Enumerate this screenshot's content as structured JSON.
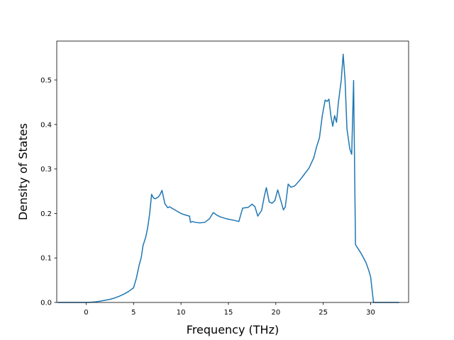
{
  "chart_data": {
    "type": "line",
    "xlabel": "Frequency (THz)",
    "ylabel": "Density of States",
    "xlim": [
      -3.1,
      34.0
    ],
    "ylim": [
      0.0,
      0.5875
    ],
    "xticks": [
      0,
      5,
      10,
      15,
      20,
      25,
      30
    ],
    "yticks": [
      0.0,
      0.1,
      0.2,
      0.3,
      0.4,
      0.5
    ],
    "grid": false,
    "colors": {
      "series": "#1f77b4",
      "axes": "#000000",
      "background": "#ffffff"
    },
    "series": [
      {
        "x": [
          -3.0,
          -2.0,
          -1.0,
          0.0,
          0.5,
          1.0,
          1.5,
          2.0,
          2.5,
          3.0,
          3.5,
          4.0,
          4.5,
          5.0,
          5.3,
          5.6,
          5.8,
          6.0,
          6.3,
          6.5,
          6.7,
          6.9,
          7.1,
          7.3,
          7.6,
          7.8,
          8.0,
          8.3,
          8.6,
          8.8,
          9.2,
          9.6,
          10.0,
          10.4,
          10.9,
          11.0,
          11.2,
          11.5,
          12.0,
          12.5,
          13.0,
          13.2,
          13.4,
          13.8,
          14.2,
          14.8,
          15.5,
          16.1,
          16.5,
          16.8,
          17.1,
          17.5,
          17.8,
          18.1,
          18.5,
          18.8,
          19.0,
          19.3,
          19.6,
          19.9,
          20.2,
          20.5,
          20.8,
          21.0,
          21.3,
          21.6,
          22.0,
          22.5,
          23.0,
          23.5,
          24.0,
          24.3,
          24.6,
          24.9,
          25.2,
          25.4,
          25.6,
          25.8,
          26.0,
          26.2,
          26.4,
          26.6,
          26.9,
          27.1,
          27.3,
          27.5,
          27.8,
          28.0,
          28.2,
          28.4,
          29.0,
          29.5,
          29.8,
          30.0,
          30.3,
          31.0,
          32.0,
          33.0
        ],
        "y": [
          0.0,
          0.0,
          0.0,
          0.0,
          0.0005,
          0.0015,
          0.003,
          0.005,
          0.007,
          0.01,
          0.014,
          0.019,
          0.025,
          0.033,
          0.055,
          0.085,
          0.1,
          0.128,
          0.148,
          0.17,
          0.2,
          0.243,
          0.235,
          0.233,
          0.237,
          0.243,
          0.252,
          0.222,
          0.213,
          0.215,
          0.21,
          0.205,
          0.2,
          0.197,
          0.194,
          0.18,
          0.182,
          0.18,
          0.179,
          0.18,
          0.188,
          0.195,
          0.202,
          0.196,
          0.192,
          0.188,
          0.185,
          0.182,
          0.212,
          0.213,
          0.214,
          0.221,
          0.215,
          0.194,
          0.207,
          0.24,
          0.258,
          0.226,
          0.223,
          0.229,
          0.253,
          0.231,
          0.208,
          0.215,
          0.266,
          0.259,
          0.262,
          0.274,
          0.288,
          0.302,
          0.325,
          0.35,
          0.37,
          0.42,
          0.455,
          0.452,
          0.457,
          0.42,
          0.396,
          0.42,
          0.405,
          0.45,
          0.5,
          0.558,
          0.5,
          0.39,
          0.345,
          0.333,
          0.499,
          0.13,
          0.11,
          0.09,
          0.072,
          0.057,
          0.0,
          0.0,
          0.0,
          0.0
        ]
      }
    ]
  }
}
